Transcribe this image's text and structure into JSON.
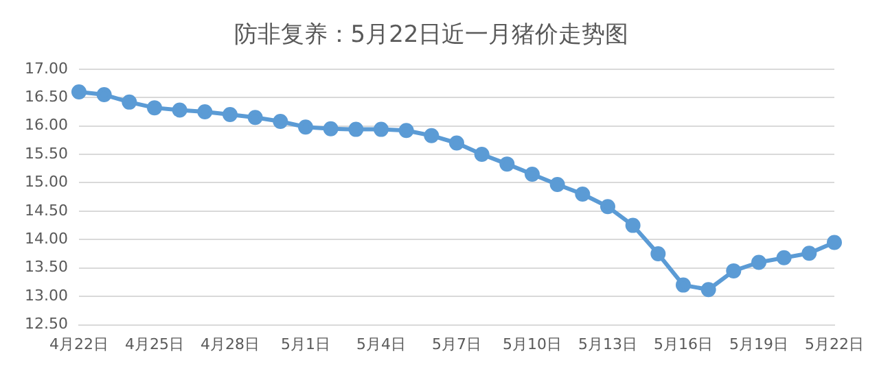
{
  "chart_data": {
    "type": "line",
    "title": "防非复养：5月22日近一月猪价走势图",
    "categories": [
      "4月22日",
      null,
      null,
      "4月25日",
      null,
      null,
      "4月28日",
      null,
      null,
      "5月1日",
      null,
      null,
      "5月4日",
      null,
      null,
      "5月7日",
      null,
      null,
      "5月10日",
      null,
      null,
      "5月13日",
      null,
      null,
      "5月16日",
      null,
      null,
      "5月19日",
      null,
      null,
      "5月22日"
    ],
    "series": [
      {
        "color": "#5b9bd5",
        "values": [
          16.6,
          16.55,
          16.42,
          16.32,
          16.28,
          16.25,
          16.2,
          16.15,
          16.08,
          15.98,
          15.95,
          15.94,
          15.94,
          15.92,
          15.83,
          15.7,
          15.5,
          15.33,
          15.15,
          14.97,
          14.8,
          14.58,
          14.25,
          13.75,
          13.2,
          13.12,
          13.45,
          13.6,
          13.68,
          13.76,
          13.95
        ]
      }
    ],
    "ylim": [
      12.5,
      17
    ],
    "yticks": [
      {
        "value": 12.5,
        "label": "12.50"
      },
      {
        "value": 13,
        "label": "13.00"
      },
      {
        "value": 13.5,
        "label": "13.50"
      },
      {
        "value": 14,
        "label": "14.00"
      },
      {
        "value": 14.5,
        "label": "14.50"
      },
      {
        "value": 15,
        "label": "15.00"
      },
      {
        "value": 15.5,
        "label": "15.50"
      },
      {
        "value": 16,
        "label": "16.00"
      },
      {
        "value": 16.5,
        "label": "16.50"
      },
      {
        "value": 17,
        "label": "17.00"
      }
    ],
    "grid": "y",
    "legend": false,
    "marker": "circle",
    "line_style": "solid"
  }
}
